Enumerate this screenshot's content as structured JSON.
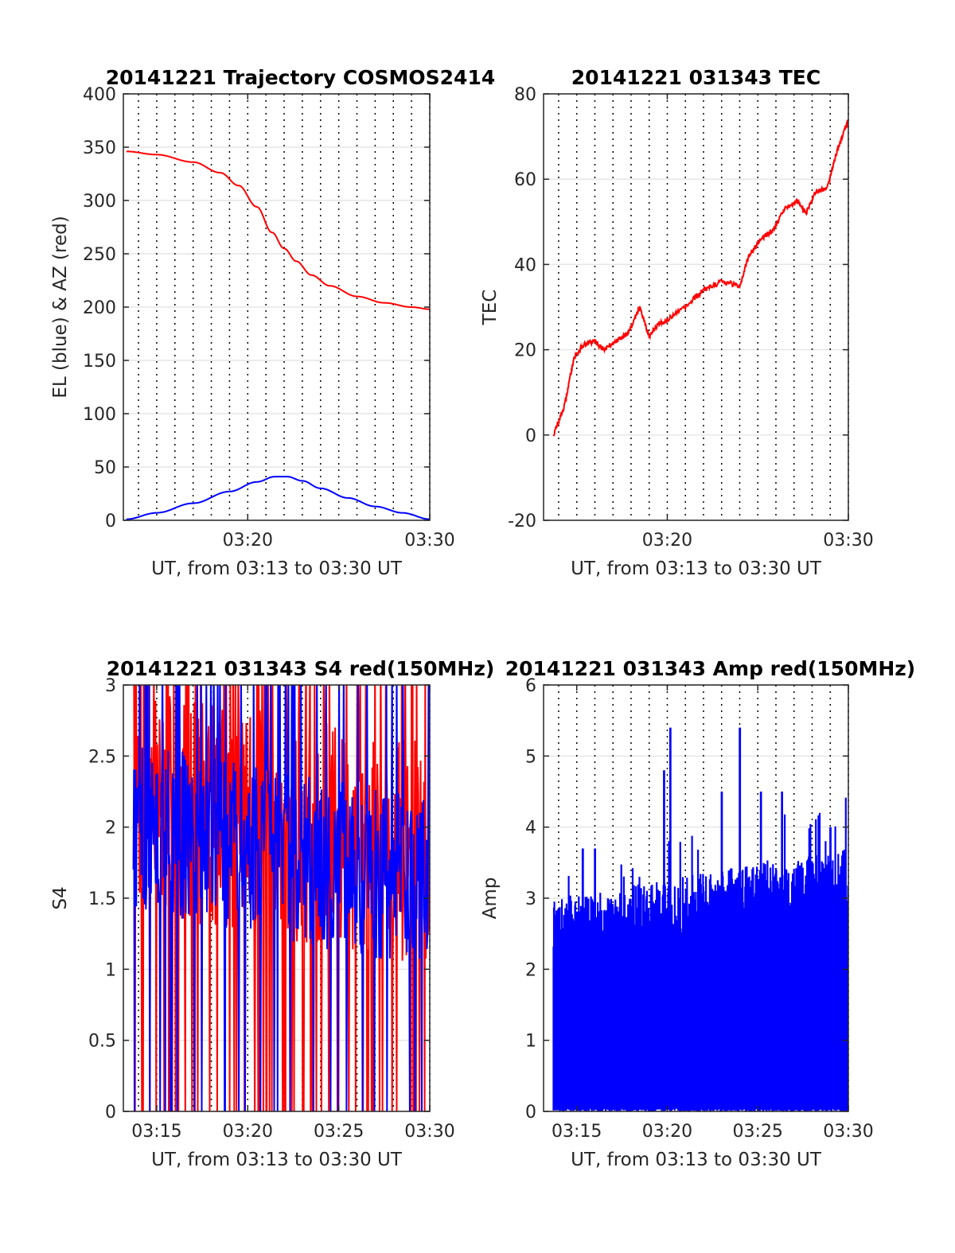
{
  "colors": {
    "red": "#ff0000",
    "blue": "#0000ff",
    "grid_dotted": "#000000",
    "grid_solid": "#e6e6e6"
  },
  "chart_data": [
    {
      "type": "line",
      "title": "20141221 Trajectory COSMOS2414",
      "xlabel": "UT, from 03:13 to 03:30 UT",
      "ylabel": "EL (blue) & AZ (red)",
      "xlim": [
        "03:13:10",
        "03:30:00"
      ],
      "ylim": [
        0,
        400
      ],
      "xticks": [
        "03:20",
        "03:30"
      ],
      "yticks": [
        "0",
        "50",
        "100",
        "150",
        "200",
        "250",
        "300",
        "350",
        "400"
      ],
      "grid": true,
      "series": [
        {
          "color": "#ff0000",
          "x": [
            "03:13:20",
            "03:15:00",
            "03:17:00",
            "03:18:30",
            "03:19:30",
            "03:20:30",
            "03:21:20",
            "03:22:00",
            "03:22:40",
            "03:23:30",
            "03:24:30",
            "03:26:00",
            "03:27:30",
            "03:29:00",
            "03:30:00"
          ],
          "y": [
            346,
            343,
            336,
            326,
            314,
            294,
            270,
            255,
            243,
            230,
            220,
            210,
            204,
            200,
            198
          ]
        },
        {
          "color": "#0000ff",
          "x": [
            "03:13:20",
            "03:15:00",
            "03:17:00",
            "03:19:00",
            "03:20:30",
            "03:21:30",
            "03:22:10",
            "03:23:00",
            "03:24:00",
            "03:25:30",
            "03:27:00",
            "03:28:30",
            "03:30:00"
          ],
          "y": [
            1,
            7,
            16,
            27,
            36,
            41,
            41,
            37,
            30,
            21,
            13,
            7,
            1
          ]
        }
      ]
    },
    {
      "type": "line",
      "title": "20141221 031343 TEC",
      "xlabel": "UT, from 03:13 to 03:30 UT",
      "ylabel": "TEC",
      "xlim": [
        "03:13:10",
        "03:30:00"
      ],
      "ylim": [
        -20,
        80
      ],
      "xticks": [
        "03:20",
        "03:30"
      ],
      "yticks": [
        "-20",
        "0",
        "20",
        "40",
        "60",
        "80"
      ],
      "grid": true,
      "series": [
        {
          "color": "#ff0000",
          "x": [
            "03:13:43",
            "03:14:20",
            "03:14:50",
            "03:15:20",
            "03:16:00",
            "03:16:30",
            "03:17:10",
            "03:17:50",
            "03:18:30",
            "03:19:00",
            "03:19:30",
            "03:20:00",
            "03:21:00",
            "03:22:00",
            "03:23:00",
            "03:24:00",
            "03:24:30",
            "03:25:10",
            "03:25:50",
            "03:26:30",
            "03:27:10",
            "03:27:40",
            "03:28:10",
            "03:28:50",
            "03:29:20",
            "03:30:00"
          ],
          "y": [
            0,
            7,
            18,
            21,
            22,
            20,
            22,
            24,
            30,
            23,
            26,
            27,
            30,
            34,
            36,
            35,
            42,
            46,
            48,
            53,
            55,
            52,
            57,
            58,
            66,
            74
          ]
        }
      ]
    },
    {
      "type": "line",
      "title": "20141221 031343 S4 red(150MHz)",
      "xlabel": "UT, from 03:13 to 03:30 UT",
      "ylabel": "S4",
      "xlim": [
        "03:13:10",
        "03:30:00"
      ],
      "ylim": [
        0,
        3
      ],
      "xticks": [
        "03:15",
        "03:20",
        "03:25",
        "03:30"
      ],
      "yticks": [
        "0",
        "0.5",
        "1",
        "1.5",
        "2",
        "2.5",
        "3"
      ],
      "grid": true,
      "series": [
        {
          "color": "#ff0000",
          "x_start": "03:13:43",
          "x_end": "03:30:00",
          "style": "noise",
          "base": 2.2,
          "spread": 0.8,
          "clip": [
            0,
            3
          ]
        },
        {
          "color": "#0000ff",
          "x_start": "03:13:43",
          "x_end": "03:30:00",
          "style": "noise",
          "base": 2.0,
          "spread": 0.6,
          "clip": [
            0,
            3
          ]
        }
      ]
    },
    {
      "type": "line",
      "title": "20141221 031343 Amp red(150MHz)",
      "xlabel": "UT, from 03:13 to 03:30 UT",
      "ylabel": "Amp",
      "xlim": [
        "03:13:10",
        "03:30:00"
      ],
      "ylim": [
        0,
        6
      ],
      "xticks": [
        "03:15",
        "03:20",
        "03:25",
        "03:30"
      ],
      "yticks": [
        "0",
        "1",
        "2",
        "3",
        "4",
        "5",
        "6"
      ],
      "grid": true,
      "series": [
        {
          "color": "#0000ff",
          "x_start": "03:13:43",
          "x_end": "03:30:00",
          "style": "filled-noise",
          "envelope": 2.4,
          "peaks": [
            [
              "03:20:10",
              5.4
            ],
            [
              "03:24:00",
              5.4
            ],
            [
              "03:19:50",
              4.8
            ],
            [
              "03:23:00",
              4.5
            ],
            [
              "03:25:10",
              4.5
            ],
            [
              "03:26:20",
              4.5
            ],
            [
              "03:29:00",
              4.0
            ],
            [
              "03:15:20",
              3.7
            ],
            [
              "03:16:00",
              3.7
            ]
          ]
        }
      ]
    }
  ]
}
